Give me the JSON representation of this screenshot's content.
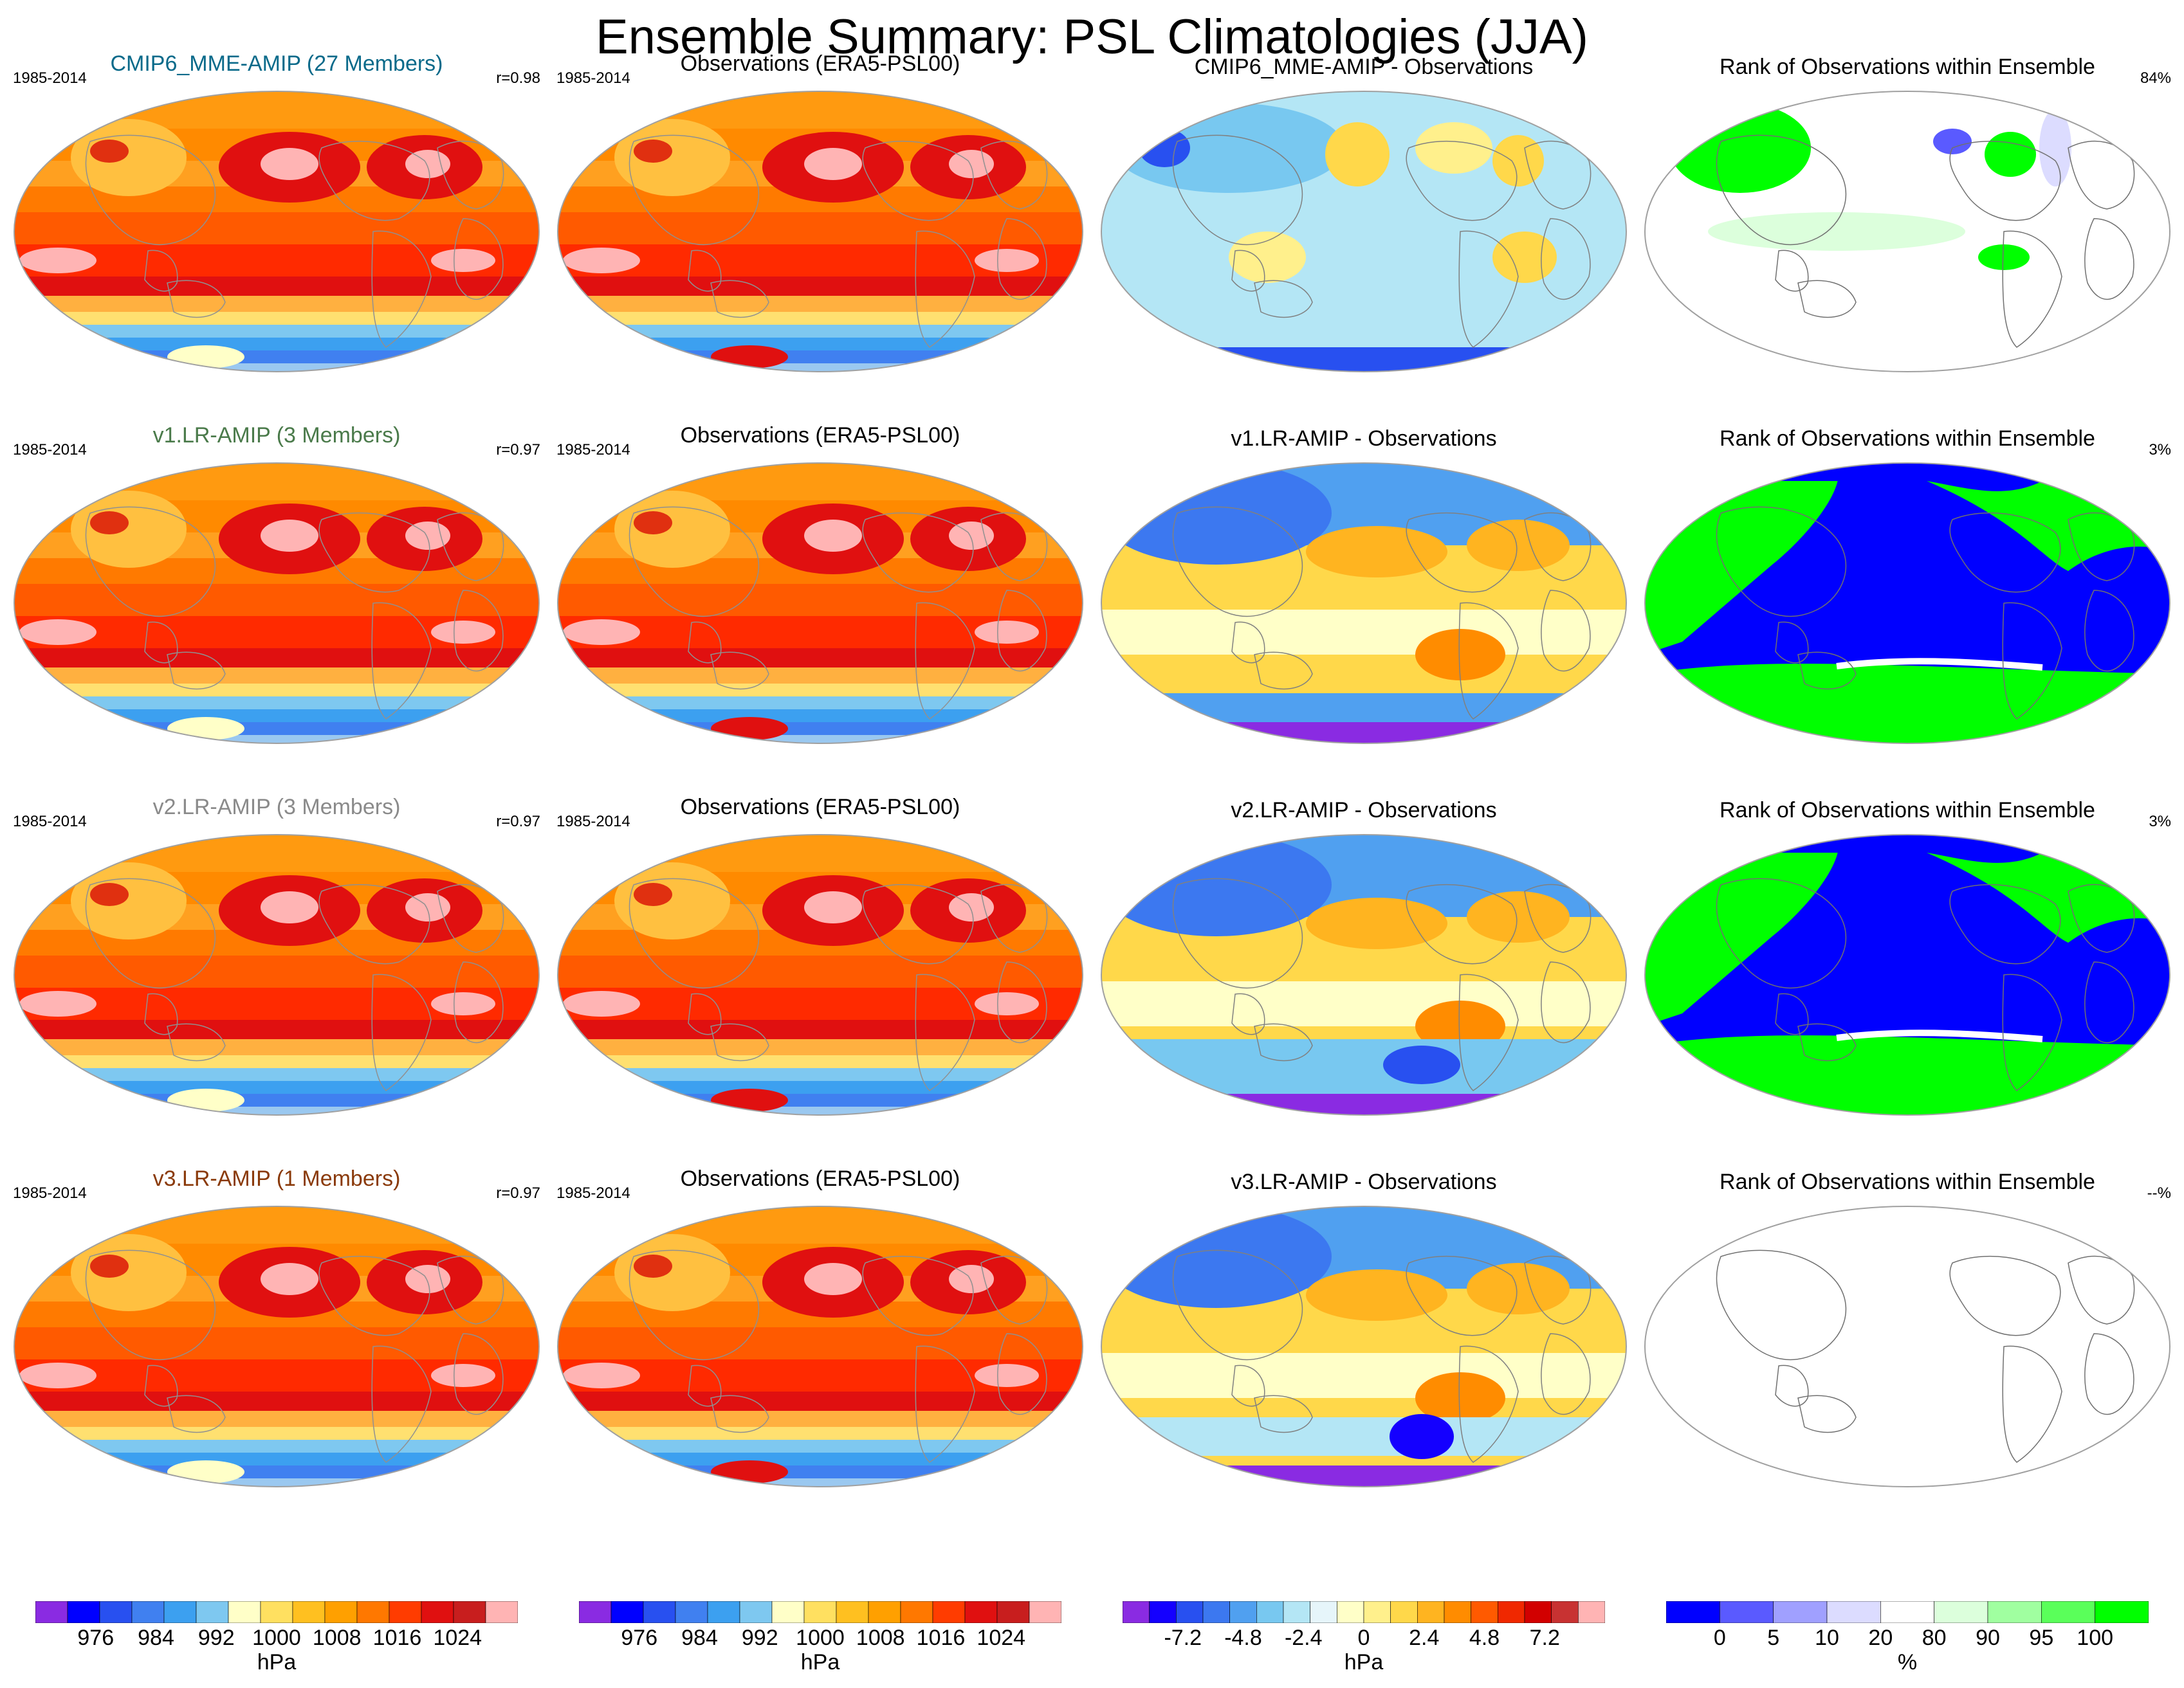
{
  "title": "Ensemble Summary: PSL Climatologies (JJA)",
  "rows": [
    {
      "model_label": "CMIP6_MME-AMIP (27 Members)",
      "model_color": "#0a6a8a",
      "years": "1985-2014",
      "corr": "r=0.98",
      "obs_label": "Observations (ERA5-PSL00)",
      "obs_years": "1985-2014",
      "diff_label": "CMIP6_MME-AMIP - Observations",
      "rank_label": "Rank of Observations within Ensemble",
      "rank_pct": "84%",
      "rank_style": "mixed"
    },
    {
      "model_label": "v1.LR-AMIP (3 Members)",
      "model_color": "#4a7a4a",
      "years": "1985-2014",
      "corr": "r=0.97",
      "obs_label": "Observations (ERA5-PSL00)",
      "obs_years": "1985-2014",
      "diff_label": "v1.LR-AMIP - Observations",
      "rank_label": "Rank of Observations within Ensemble",
      "rank_pct": "3%",
      "rank_style": "binary"
    },
    {
      "model_label": "v2.LR-AMIP (3 Members)",
      "model_color": "#8a8a8a",
      "years": "1985-2014",
      "corr": "r=0.97",
      "obs_label": "Observations (ERA5-PSL00)",
      "obs_years": "1985-2014",
      "diff_label": "v2.LR-AMIP - Observations",
      "rank_label": "Rank of Observations within Ensemble",
      "rank_pct": "3%",
      "rank_style": "binary"
    },
    {
      "model_label": "v3.LR-AMIP (1 Members)",
      "model_color": "#8a3a0a",
      "years": "1985-2014",
      "corr": "r=0.97",
      "obs_label": "Observations (ERA5-PSL00)",
      "obs_years": "1985-2014",
      "diff_label": "v3.LR-AMIP - Observations",
      "rank_label": "Rank of Observations within Ensemble",
      "rank_pct": "--%",
      "rank_style": "empty"
    }
  ],
  "colorbars": [
    {
      "unit": "hPa",
      "ticks": [
        "976",
        "984",
        "992",
        "1000",
        "1008",
        "1016",
        "1024"
      ],
      "colors": [
        "#8a2be2",
        "#0000ff",
        "#2850f0",
        "#4080f0",
        "#3ca0f0",
        "#7ec8f0",
        "#ffffc8",
        "#ffe060",
        "#ffc020",
        "#ffa000",
        "#ff7800",
        "#ff3c00",
        "#e01010",
        "#c81e1e",
        "#ffb4b4"
      ]
    },
    {
      "unit": "hPa",
      "ticks": [
        "976",
        "984",
        "992",
        "1000",
        "1008",
        "1016",
        "1024"
      ],
      "colors": [
        "#8a2be2",
        "#0000ff",
        "#2850f0",
        "#4080f0",
        "#3ca0f0",
        "#7ec8f0",
        "#ffffc8",
        "#ffe060",
        "#ffc020",
        "#ffa000",
        "#ff7800",
        "#ff3c00",
        "#e01010",
        "#c81e1e",
        "#ffb4b4"
      ]
    },
    {
      "unit": "hPa",
      "ticks": [
        "-7.2",
        "-4.8",
        "-2.4",
        "0",
        "2.4",
        "4.8",
        "7.2"
      ],
      "colors": [
        "#8a2be2",
        "#1400ff",
        "#2850f0",
        "#3c78f0",
        "#50a0f0",
        "#78c8f0",
        "#b4e6f5",
        "#e6f5fa",
        "#ffffc8",
        "#fff08c",
        "#ffd84a",
        "#ffb420",
        "#ff8c00",
        "#ff5a00",
        "#f02800",
        "#d20000",
        "#c83232",
        "#ffb4b4"
      ]
    },
    {
      "unit": "%",
      "ticks": [
        "0",
        "5",
        "10",
        "20",
        "80",
        "90",
        "95",
        "100"
      ],
      "colors": [
        "#0000ff",
        "#5a5aff",
        "#a0a0ff",
        "#dcdcff",
        "#ffffff",
        "#dcffdc",
        "#a0ffa0",
        "#5aff5a",
        "#00ff00"
      ]
    }
  ]
}
